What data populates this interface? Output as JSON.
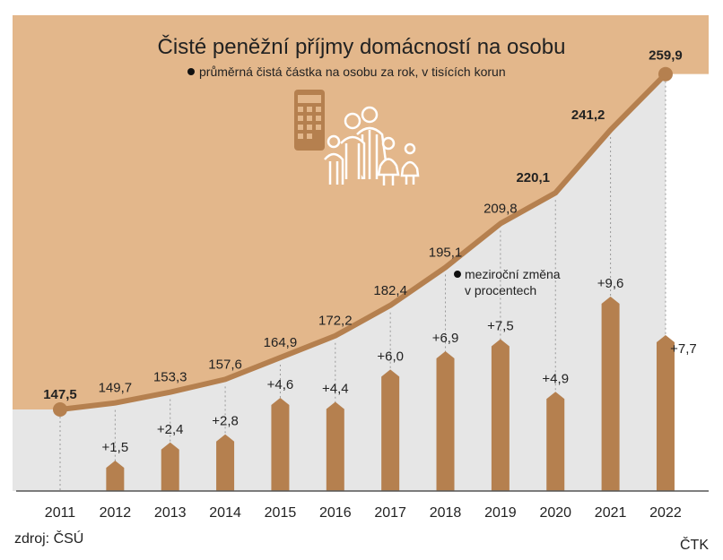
{
  "chart_data": {
    "type": "line+bar",
    "title": "Čisté peněžní příjmy domácností na osobu",
    "subtitle": "průměrná čistá částka na osobu za rok, v tisících korun",
    "bar_legend": [
      "meziroční změna",
      "v procentech"
    ],
    "categories": [
      "2011",
      "2012",
      "2013",
      "2014",
      "2015",
      "2016",
      "2017",
      "2018",
      "2019",
      "2020",
      "2021",
      "2022"
    ],
    "series": [
      {
        "name": "průměrná čistá částka na osobu za rok, v tisících korun",
        "type": "line",
        "values": [
          147.5,
          149.7,
          153.3,
          157.6,
          164.9,
          172.2,
          182.4,
          195.1,
          209.8,
          220.1,
          241.2,
          259.9
        ],
        "labels": [
          "147,5",
          "149,7",
          "153,3",
          "157,6",
          "164,9",
          "172,2",
          "182,4",
          "195,1",
          "209,8",
          "220,1",
          "241,2",
          "259,9"
        ]
      },
      {
        "name": "meziroční změna v procentech",
        "type": "bar",
        "values": [
          null,
          1.5,
          2.4,
          2.8,
          4.6,
          4.4,
          6.0,
          6.9,
          7.5,
          4.9,
          9.6,
          7.7
        ],
        "labels": [
          "",
          "+1,5",
          "+2,4",
          "+2,8",
          "+4,6",
          "+4,4",
          "+6,0",
          "+6,9",
          "+7,5",
          "+4,9",
          "+9,6",
          "+7,7"
        ]
      }
    ],
    "colors": {
      "line": "#b5804f",
      "bar": "#b5804f",
      "upper_area": "#e3b78b",
      "lower_area": "#e6e6e6"
    },
    "grid": false
  },
  "footer": {
    "source": "zdroj: ČSÚ",
    "agency": "ČTK"
  },
  "icons": [
    "calculator-icon",
    "family-icon"
  ]
}
